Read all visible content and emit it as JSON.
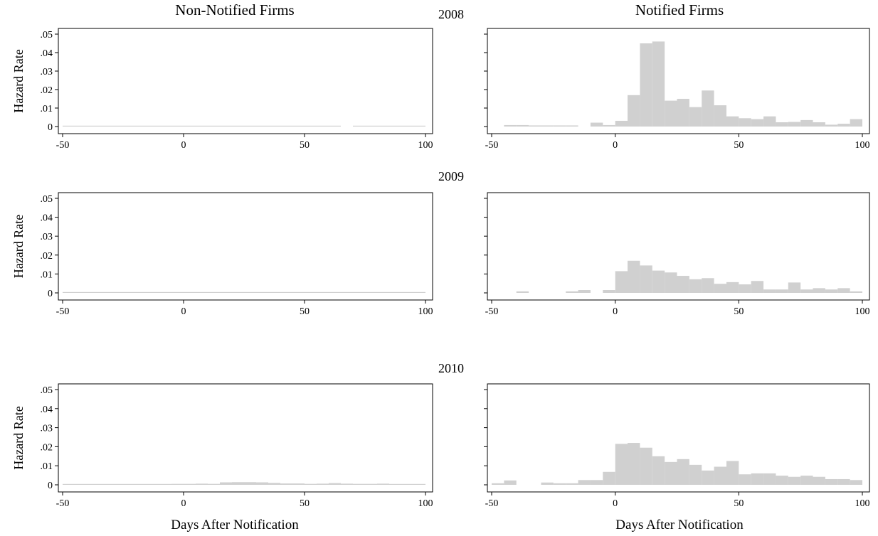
{
  "figure": {
    "column_titles": [
      "Non-Notified Firms",
      "Notified Firms"
    ],
    "year_labels": [
      "2008",
      "2009",
      "2010"
    ],
    "xlabel": "Days After Notification",
    "ylabel": "Hazard Rate",
    "bar_color": "#d0d0d0"
  },
  "chart_data": [
    {
      "type": "bar",
      "year": "2008",
      "group": "Non-Notified Firms",
      "title": "",
      "xlabel": "",
      "ylabel": "Hazard Rate",
      "xlim": [
        -50,
        100
      ],
      "ylim": [
        0,
        0.05
      ],
      "xticks": [
        "-50",
        "0",
        "50",
        "100"
      ],
      "yticks": [
        "0",
        ".01",
        ".02",
        ".03",
        ".04",
        ".05"
      ],
      "bin_width": 5,
      "bins": [
        -50,
        -45,
        -40,
        -35,
        -30,
        -25,
        -20,
        -15,
        -10,
        -5,
        0,
        5,
        10,
        15,
        20,
        25,
        30,
        35,
        40,
        45,
        50,
        55,
        60,
        65,
        70,
        75,
        80,
        85,
        90,
        95
      ],
      "values": [
        0.0001,
        0.0002,
        0.0002,
        0.0001,
        0.0001,
        0.0002,
        0.0002,
        0.0001,
        0.0001,
        0.0003,
        0.0002,
        0.0002,
        0.0001,
        0.0001,
        0.0001,
        0.0001,
        0.0001,
        0.0001,
        0.0001,
        0.0001,
        0.0001,
        0.0001,
        0.0001,
        0,
        0.0001,
        0.0001,
        0.0001,
        0.0001,
        0.0001,
        0.0001
      ]
    },
    {
      "type": "bar",
      "year": "2008",
      "group": "Notified Firms",
      "title": "",
      "xlabel": "",
      "ylabel": "",
      "xlim": [
        -50,
        100
      ],
      "ylim": [
        0,
        0.05
      ],
      "xticks": [
        "-50",
        "0",
        "50",
        "100"
      ],
      "yticks": [],
      "bin_width": 5,
      "bins": [
        -45,
        -40,
        -35,
        -30,
        -25,
        -20,
        -15,
        -10,
        -5,
        0,
        5,
        10,
        15,
        20,
        25,
        30,
        35,
        40,
        45,
        50,
        55,
        60,
        65,
        70,
        75,
        80,
        85,
        90,
        95
      ],
      "values": [
        0.0008,
        0.0008,
        0.0006,
        0.0006,
        0.0006,
        0.0006,
        0,
        0.0021,
        0.0008,
        0.0031,
        0.017,
        0.045,
        0.046,
        0.014,
        0.015,
        0.0105,
        0.0195,
        0.0115,
        0.0055,
        0.0045,
        0.004,
        0.0055,
        0.0023,
        0.0025,
        0.0035,
        0.0023,
        0.001,
        0.0015,
        0.004
      ]
    },
    {
      "type": "bar",
      "year": "2009",
      "group": "Non-Notified Firms",
      "title": "",
      "xlabel": "",
      "ylabel": "Hazard Rate",
      "xlim": [
        -50,
        100
      ],
      "ylim": [
        0,
        0.05
      ],
      "xticks": [
        "-50",
        "0",
        "50",
        "100"
      ],
      "yticks": [
        "0",
        ".01",
        ".02",
        ".03",
        ".04",
        ".05"
      ],
      "bin_width": 5,
      "bins": [
        -50,
        -45,
        -40,
        -35,
        -30,
        -25,
        -20,
        -15,
        -10,
        -5,
        0,
        5,
        10,
        15,
        20,
        25,
        30,
        35,
        40,
        45,
        50,
        55,
        60,
        65,
        70,
        75,
        80,
        85,
        90,
        95
      ],
      "values": [
        0.0001,
        0.0001,
        0.0001,
        0.0001,
        0.0001,
        0.0001,
        0.0001,
        0.0001,
        0.0001,
        0.0001,
        0.0001,
        0.0001,
        0.0001,
        0.0001,
        0.0002,
        0.0002,
        0.0001,
        0.0001,
        0.0001,
        0.0001,
        0.0001,
        0.0001,
        0.0001,
        0.0001,
        0.0001,
        0.0001,
        0.0001,
        0.0001,
        0.0001,
        0.0001
      ]
    },
    {
      "type": "bar",
      "year": "2009",
      "group": "Notified Firms",
      "title": "",
      "xlabel": "",
      "ylabel": "",
      "xlim": [
        -50,
        100
      ],
      "ylim": [
        0,
        0.05
      ],
      "xticks": [
        "-50",
        "0",
        "50",
        "100"
      ],
      "yticks": [],
      "bin_width": 5,
      "bins": [
        -40,
        -20,
        -15,
        -5,
        0,
        5,
        10,
        15,
        20,
        25,
        30,
        35,
        40,
        45,
        50,
        55,
        60,
        65,
        70,
        75,
        80,
        85,
        90,
        95
      ],
      "values": [
        0.0008,
        0.0008,
        0.0015,
        0.0015,
        0.0115,
        0.017,
        0.0145,
        0.0118,
        0.0108,
        0.009,
        0.0072,
        0.0078,
        0.0048,
        0.0057,
        0.0045,
        0.0063,
        0.0018,
        0.0018,
        0.0055,
        0.0018,
        0.0025,
        0.0018,
        0.0025,
        0.0008
      ]
    },
    {
      "type": "bar",
      "year": "2010",
      "group": "Non-Notified Firms",
      "title": "",
      "xlabel": "Days After Notification",
      "ylabel": "Hazard Rate",
      "xlim": [
        -50,
        100
      ],
      "ylim": [
        0,
        0.05
      ],
      "xticks": [
        "-50",
        "0",
        "50",
        "100"
      ],
      "yticks": [
        "0",
        ".01",
        ".02",
        ".03",
        ".04",
        ".05"
      ],
      "bin_width": 5,
      "bins": [
        -50,
        -45,
        -40,
        -35,
        -30,
        -25,
        -20,
        -15,
        -10,
        -5,
        0,
        5,
        10,
        15,
        20,
        25,
        30,
        35,
        40,
        45,
        50,
        55,
        60,
        65,
        70,
        75,
        80,
        85,
        90,
        95
      ],
      "values": [
        0.0003,
        0.0004,
        0.0003,
        0.0003,
        0.0003,
        0.0004,
        0.0004,
        0.0004,
        0.0004,
        0.0005,
        0.0005,
        0.0006,
        0.0005,
        0.0013,
        0.0014,
        0.0014,
        0.0013,
        0.001,
        0.0007,
        0.0007,
        0.0005,
        0.0006,
        0.0009,
        0.0006,
        0.0005,
        0.0005,
        0.0006,
        0.0004,
        0.0004,
        0.0003
      ]
    },
    {
      "type": "bar",
      "year": "2010",
      "group": "Notified Firms",
      "title": "",
      "xlabel": "Days After Notification",
      "ylabel": "",
      "xlim": [
        -50,
        100
      ],
      "ylim": [
        0,
        0.05
      ],
      "xticks": [
        "-50",
        "0",
        "50",
        "100"
      ],
      "yticks": [],
      "bin_width": 5,
      "bins": [
        -50,
        -45,
        -30,
        -25,
        -20,
        -15,
        -10,
        -5,
        0,
        5,
        10,
        15,
        20,
        25,
        30,
        35,
        40,
        45,
        50,
        55,
        60,
        65,
        70,
        75,
        80,
        85,
        90,
        95
      ],
      "values": [
        0.0008,
        0.0023,
        0.0012,
        0.0008,
        0.0008,
        0.0025,
        0.0025,
        0.0068,
        0.0215,
        0.022,
        0.0195,
        0.015,
        0.012,
        0.0135,
        0.0105,
        0.0075,
        0.0095,
        0.0125,
        0.0055,
        0.006,
        0.006,
        0.0048,
        0.0042,
        0.0048,
        0.0042,
        0.003,
        0.003,
        0.0025
      ]
    }
  ]
}
